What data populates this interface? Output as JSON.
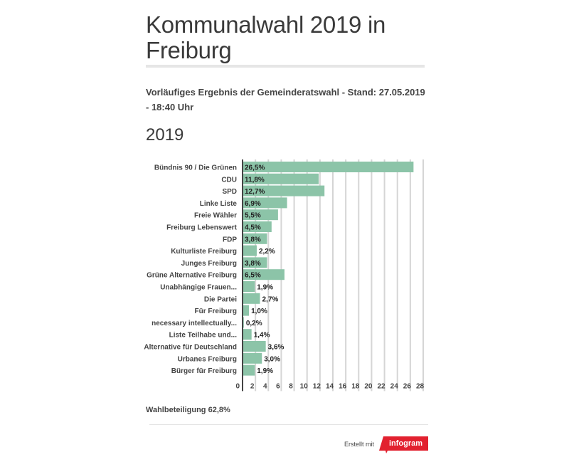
{
  "header": {
    "title": "Kommunalwahl 2019 in Freiburg",
    "subtitle": "Vorläufiges Ergebnis der Gemeinderatswahl - Stand: 27.05.2019 - 18:40 Uhr",
    "section_title": "2019"
  },
  "colors": {
    "bar": "#8cc4a8",
    "grid": "#d5d5d5",
    "axis": "#444444",
    "brand": "#e2212f"
  },
  "chart_data": {
    "type": "bar",
    "orientation": "horizontal",
    "title": "2019",
    "xlabel": "",
    "ylabel": "",
    "xlim": [
      0,
      28
    ],
    "grid": true,
    "x_ticks": [
      "0",
      "2",
      "4",
      "6",
      "8",
      "10",
      "12",
      "14",
      "16",
      "18",
      "20",
      "22",
      "24",
      "26",
      "28"
    ],
    "categories": [
      "Bündnis 90 / Die Grünen",
      "CDU",
      "SPD",
      "Linke Liste",
      "Freie Wähler",
      "Freiburg Lebenswert",
      "FDP",
      "Kulturliste Freiburg",
      "Junges Freiburg",
      "Grüne Alternative Freiburg",
      "Unabhängige Frauen...",
      "Die Partei",
      "Für Freiburg",
      "necessary intellectually...",
      "Liste Teilhabe und...",
      "Alternative für Deutschland",
      "Urbanes Freiburg",
      "Bürger für Freiburg"
    ],
    "values": [
      26.5,
      11.8,
      12.7,
      6.9,
      5.5,
      4.5,
      3.8,
      2.2,
      3.8,
      6.5,
      1.9,
      2.7,
      1.0,
      0.2,
      1.4,
      3.6,
      3.0,
      1.9
    ],
    "labels": [
      "26,5%",
      "11,8%",
      "12,7%",
      "6,9%",
      "5,5%",
      "4,5%",
      "3,8%",
      "2,2%",
      "3,8%",
      "6,5%",
      "1,9%",
      "2,7%",
      "1,0%",
      "0,2%",
      "1,4%",
      "3,6%",
      "3,0%",
      "1,9%"
    ]
  },
  "footer": {
    "note": "Wahlbeteiligung 62,8%",
    "credit": "Erstellt mit",
    "brand": "infogram"
  }
}
